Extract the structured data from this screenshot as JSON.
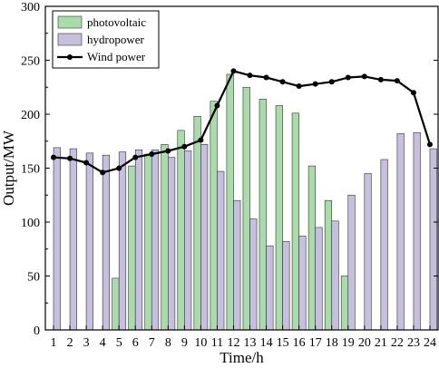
{
  "chart_data": {
    "type": "bar",
    "xlabel": "Time/h",
    "ylabel": "Output/MW",
    "ylim": [
      0,
      300
    ],
    "yticks": [
      0,
      50,
      100,
      150,
      200,
      250,
      300
    ],
    "grid": false,
    "legend_position": "top-left",
    "categories": [
      "1",
      "2",
      "3",
      "4",
      "5",
      "6",
      "7",
      "8",
      "9",
      "10",
      "11",
      "12",
      "13",
      "14",
      "15",
      "16",
      "17",
      "18",
      "19",
      "20",
      "21",
      "22",
      "23",
      "24"
    ],
    "series": [
      {
        "name": "photovoltaic",
        "kind": "bar",
        "color": "#a8dca8",
        "values": [
          0,
          0,
          0,
          0,
          48,
          152,
          163,
          172,
          185,
          198,
          212,
          237,
          225,
          214,
          208,
          201,
          152,
          120,
          50,
          0,
          0,
          0,
          0,
          0
        ]
      },
      {
        "name": "hydropower",
        "kind": "bar",
        "color": "#c7bfdf",
        "values": [
          169,
          168,
          164,
          162,
          165,
          167,
          167,
          160,
          166,
          172,
          147,
          120,
          103,
          78,
          82,
          87,
          95,
          101,
          125,
          145,
          158,
          182,
          183,
          168
        ]
      },
      {
        "name": "Wind power",
        "kind": "line",
        "color": "#000000",
        "values": [
          160,
          159,
          155,
          146,
          150,
          160,
          163,
          166,
          170,
          176,
          208,
          240,
          236,
          234,
          230,
          226,
          228,
          230,
          234,
          235,
          232,
          231,
          220,
          172
        ]
      }
    ]
  }
}
